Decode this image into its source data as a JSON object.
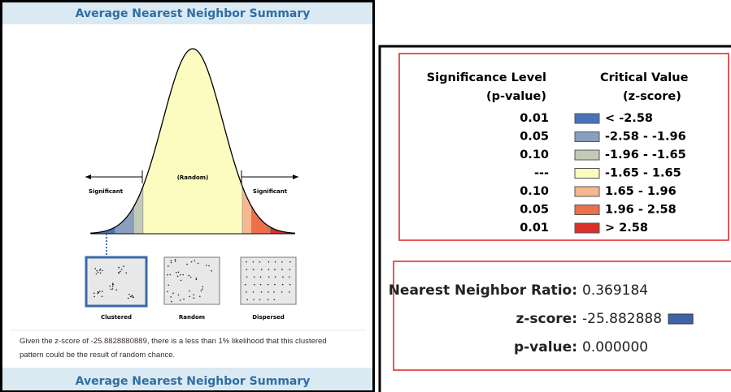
{
  "summary": {
    "title": "Average Nearest Neighbor Summary",
    "left_label": "Significant",
    "center_label": "(Random)",
    "right_label": "Significant",
    "patterns": [
      "Clustered",
      "Random",
      "Dispersed"
    ],
    "description": "Given the z-score of -25.8828880889, there is a less than 1% likelihood that this clustered pattern could be the result of random chance.",
    "footer_title": "Average Nearest Neighbor Summary"
  },
  "legend": {
    "header_left": [
      "Significance Level",
      "(p-value)"
    ],
    "header_right": [
      "Critical Value",
      "(z-score)"
    ],
    "rows": [
      {
        "p": "0.01",
        "color": "#4a72b8",
        "z": "< -2.58"
      },
      {
        "p": "0.05",
        "color": "#8a9fbf",
        "z": "-2.58 - -1.96"
      },
      {
        "p": "0.10",
        "color": "#c3cab8",
        "z": "-1.96 - -1.65"
      },
      {
        "p": "---",
        "color": "#fdfcc0",
        "z": "-1.65 - 1.65"
      },
      {
        "p": "0.10",
        "color": "#f7b88f",
        "z": "1.65 - 1.96"
      },
      {
        "p": "0.05",
        "color": "#ee6f4c",
        "z": "1.96 - 2.58"
      },
      {
        "p": "0.01",
        "color": "#d9312a",
        "z": "> 2.58"
      }
    ]
  },
  "results": {
    "rows": [
      {
        "label": "Nearest Neighbor Ratio:",
        "value": "0.369184"
      },
      {
        "label": "z-score:",
        "value": "-25.882888"
      },
      {
        "label": "p-value:",
        "value": "0.000000"
      }
    ],
    "zscore_color": "#3f63a8"
  }
}
